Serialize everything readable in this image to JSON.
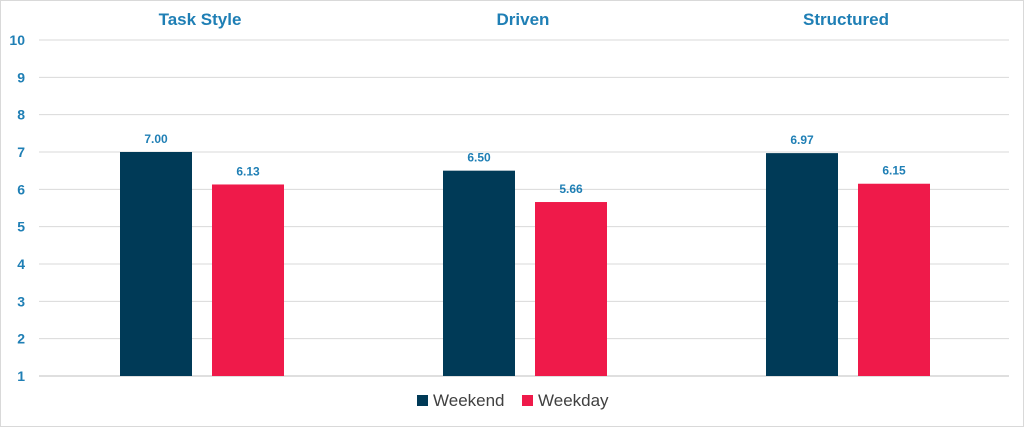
{
  "chart_data": {
    "type": "bar",
    "categories": [
      "Task Style",
      "Driven",
      "Structured"
    ],
    "series": [
      {
        "name": "Weekend",
        "values": [
          7.0,
          6.5,
          6.97
        ],
        "labels": [
          "7.00",
          "6.50",
          "6.97"
        ],
        "color": "#003a57"
      },
      {
        "name": "Weekday",
        "values": [
          6.13,
          5.66,
          6.15
        ],
        "labels": [
          "6.13",
          "5.66",
          "6.15"
        ],
        "color": "#ef1a4a"
      }
    ],
    "ylim": [
      1,
      10
    ],
    "yticks": [
      "1",
      "2",
      "3",
      "4",
      "5",
      "6",
      "7",
      "8",
      "9",
      "10"
    ],
    "grid": true,
    "legend_position": "bottom",
    "label_color": "#1f7fb5",
    "grid_color": "#d9d9d9"
  }
}
